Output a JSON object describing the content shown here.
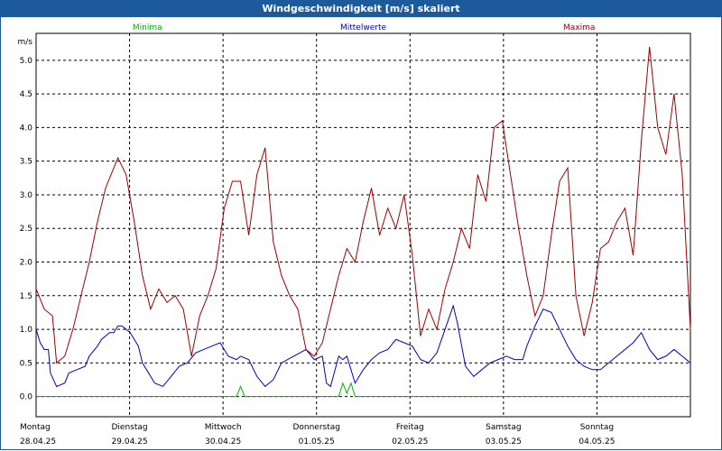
{
  "chart_data": {
    "type": "line",
    "title": "Windgeschwindigkeit [m/s] skaliert",
    "ylabel": "m/s",
    "ylim": [
      -0.3,
      5.4
    ],
    "yticks": [
      "0.0",
      "0.5",
      "1.0",
      "1.5",
      "2.0",
      "2.5",
      "3.0",
      "3.5",
      "4.0",
      "4.5",
      "5.0"
    ],
    "days": [
      {
        "weekday": "Montag",
        "date": "28.04.25"
      },
      {
        "weekday": "Dienstag",
        "date": "29.04.25"
      },
      {
        "weekday": "Mittwoch",
        "date": "30.04.25"
      },
      {
        "weekday": "Donnerstag",
        "date": "01.05.25"
      },
      {
        "weekday": "Freitag",
        "date": "02.05.25"
      },
      {
        "weekday": "Samstag",
        "date": "03.05.25"
      },
      {
        "weekday": "Sonntag",
        "date": "04.05.25"
      }
    ],
    "grid": true,
    "series": [
      {
        "name": "Minima",
        "color": "#00b000",
        "points": [
          [
            0,
            0
          ],
          [
            4.9,
            0
          ],
          [
            5.0,
            0.15
          ],
          [
            5.1,
            0
          ],
          [
            7.4,
            0
          ],
          [
            7.5,
            0.2
          ],
          [
            7.6,
            0.05
          ],
          [
            7.7,
            0.2
          ],
          [
            7.8,
            0
          ],
          [
            16.0,
            0
          ]
        ]
      },
      {
        "name": "Mittelwerte",
        "color": "#0000c0",
        "points": [
          [
            0,
            1.0
          ],
          [
            0.1,
            0.8
          ],
          [
            0.2,
            0.7
          ],
          [
            0.3,
            0.7
          ],
          [
            0.35,
            0.35
          ],
          [
            0.5,
            0.15
          ],
          [
            0.7,
            0.2
          ],
          [
            0.8,
            0.35
          ],
          [
            1.0,
            0.4
          ],
          [
            1.2,
            0.45
          ],
          [
            1.3,
            0.6
          ],
          [
            1.5,
            0.75
          ],
          [
            1.6,
            0.85
          ],
          [
            1.8,
            0.95
          ],
          [
            1.9,
            0.95
          ],
          [
            2.0,
            1.05
          ],
          [
            2.1,
            1.05
          ],
          [
            2.2,
            1.0
          ],
          [
            2.3,
            0.95
          ],
          [
            2.4,
            0.85
          ],
          [
            2.5,
            0.75
          ],
          [
            2.6,
            0.5
          ],
          [
            2.7,
            0.4
          ],
          [
            2.8,
            0.3
          ],
          [
            2.9,
            0.2
          ],
          [
            3.1,
            0.15
          ],
          [
            3.3,
            0.3
          ],
          [
            3.5,
            0.45
          ],
          [
            3.7,
            0.5
          ],
          [
            3.9,
            0.65
          ],
          [
            4.1,
            0.7
          ],
          [
            4.3,
            0.75
          ],
          [
            4.5,
            0.8
          ],
          [
            4.7,
            0.6
          ],
          [
            4.9,
            0.55
          ],
          [
            5.0,
            0.6
          ],
          [
            5.2,
            0.55
          ],
          [
            5.4,
            0.3
          ],
          [
            5.6,
            0.15
          ],
          [
            5.8,
            0.25
          ],
          [
            6.0,
            0.5
          ],
          [
            6.3,
            0.6
          ],
          [
            6.6,
            0.7
          ],
          [
            6.8,
            0.55
          ],
          [
            7.0,
            0.6
          ],
          [
            7.1,
            0.2
          ],
          [
            7.2,
            0.15
          ],
          [
            7.4,
            0.6
          ],
          [
            7.5,
            0.55
          ],
          [
            7.6,
            0.6
          ],
          [
            7.7,
            0.4
          ],
          [
            7.8,
            0.2
          ],
          [
            8.0,
            0.4
          ],
          [
            8.2,
            0.55
          ],
          [
            8.4,
            0.65
          ],
          [
            8.6,
            0.7
          ],
          [
            8.8,
            0.85
          ],
          [
            9.0,
            0.8
          ],
          [
            9.2,
            0.75
          ],
          [
            9.4,
            0.55
          ],
          [
            9.6,
            0.5
          ],
          [
            9.8,
            0.65
          ],
          [
            10.0,
            1.0
          ],
          [
            10.2,
            1.35
          ],
          [
            10.3,
            1.1
          ],
          [
            10.5,
            0.45
          ],
          [
            10.7,
            0.3
          ],
          [
            10.9,
            0.4
          ],
          [
            11.1,
            0.5
          ],
          [
            11.3,
            0.55
          ],
          [
            11.5,
            0.6
          ],
          [
            11.7,
            0.55
          ],
          [
            11.9,
            0.55
          ],
          [
            12.0,
            0.75
          ],
          [
            12.2,
            1.05
          ],
          [
            12.4,
            1.3
          ],
          [
            12.6,
            1.25
          ],
          [
            12.8,
            1.0
          ],
          [
            13.0,
            0.75
          ],
          [
            13.2,
            0.55
          ],
          [
            13.4,
            0.45
          ],
          [
            13.6,
            0.4
          ],
          [
            13.8,
            0.4
          ],
          [
            14.0,
            0.5
          ],
          [
            14.2,
            0.6
          ],
          [
            14.4,
            0.7
          ],
          [
            14.6,
            0.8
          ],
          [
            14.8,
            0.95
          ],
          [
            15.0,
            0.7
          ],
          [
            15.2,
            0.55
          ],
          [
            15.4,
            0.6
          ],
          [
            15.6,
            0.7
          ],
          [
            15.8,
            0.6
          ],
          [
            16.0,
            0.5
          ]
        ]
      },
      {
        "name": "Maxima",
        "color": "#a00000",
        "points": [
          [
            0,
            1.6
          ],
          [
            0.2,
            1.3
          ],
          [
            0.4,
            1.2
          ],
          [
            0.5,
            0.5
          ],
          [
            0.7,
            0.6
          ],
          [
            0.9,
            1.0
          ],
          [
            1.1,
            1.5
          ],
          [
            1.3,
            2.0
          ],
          [
            1.5,
            2.6
          ],
          [
            1.7,
            3.1
          ],
          [
            1.9,
            3.4
          ],
          [
            2.0,
            3.55
          ],
          [
            2.2,
            3.3
          ],
          [
            2.4,
            2.6
          ],
          [
            2.6,
            1.8
          ],
          [
            2.8,
            1.3
          ],
          [
            3.0,
            1.6
          ],
          [
            3.2,
            1.4
          ],
          [
            3.4,
            1.5
          ],
          [
            3.6,
            1.3
          ],
          [
            3.8,
            0.6
          ],
          [
            4.0,
            1.2
          ],
          [
            4.2,
            1.5
          ],
          [
            4.4,
            1.9
          ],
          [
            4.6,
            2.8
          ],
          [
            4.8,
            3.2
          ],
          [
            5.0,
            3.2
          ],
          [
            5.2,
            2.4
          ],
          [
            5.4,
            3.3
          ],
          [
            5.6,
            3.7
          ],
          [
            5.8,
            2.3
          ],
          [
            6.0,
            1.8
          ],
          [
            6.2,
            1.5
          ],
          [
            6.4,
            1.3
          ],
          [
            6.6,
            0.7
          ],
          [
            6.8,
            0.6
          ],
          [
            7.0,
            0.8
          ],
          [
            7.2,
            1.3
          ],
          [
            7.4,
            1.8
          ],
          [
            7.6,
            2.2
          ],
          [
            7.8,
            2.0
          ],
          [
            8.0,
            2.6
          ],
          [
            8.2,
            3.1
          ],
          [
            8.4,
            2.4
          ],
          [
            8.6,
            2.8
          ],
          [
            8.8,
            2.5
          ],
          [
            9.0,
            3.0
          ],
          [
            9.2,
            2.1
          ],
          [
            9.4,
            0.9
          ],
          [
            9.6,
            1.3
          ],
          [
            9.8,
            1.0
          ],
          [
            10.0,
            1.6
          ],
          [
            10.2,
            2.0
          ],
          [
            10.4,
            2.5
          ],
          [
            10.6,
            2.2
          ],
          [
            10.8,
            3.3
          ],
          [
            11.0,
            2.9
          ],
          [
            11.2,
            4.0
          ],
          [
            11.4,
            4.1
          ],
          [
            11.6,
            3.3
          ],
          [
            11.8,
            2.5
          ],
          [
            12.0,
            1.8
          ],
          [
            12.2,
            1.2
          ],
          [
            12.4,
            1.5
          ],
          [
            12.6,
            2.4
          ],
          [
            12.8,
            3.2
          ],
          [
            13.0,
            3.4
          ],
          [
            13.2,
            1.5
          ],
          [
            13.4,
            0.9
          ],
          [
            13.6,
            1.4
          ],
          [
            13.8,
            2.2
          ],
          [
            14.0,
            2.3
          ],
          [
            14.2,
            2.6
          ],
          [
            14.4,
            2.8
          ],
          [
            14.6,
            2.1
          ],
          [
            14.8,
            3.8
          ],
          [
            15.0,
            5.2
          ],
          [
            15.2,
            4.0
          ],
          [
            15.4,
            3.6
          ],
          [
            15.6,
            4.5
          ],
          [
            15.8,
            3.3
          ],
          [
            16.0,
            1.0
          ]
        ]
      }
    ]
  }
}
